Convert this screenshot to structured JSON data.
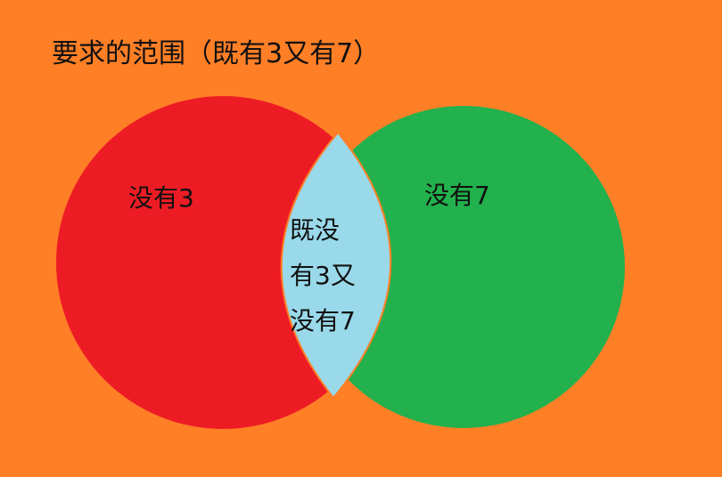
{
  "title": "要求的范围（既有3又有7）",
  "regions": {
    "left": {
      "label": "没有3",
      "color": "#ed1c24"
    },
    "right": {
      "label": "没有7",
      "color": "#22b14c"
    },
    "intersection": {
      "lines": [
        "既没",
        "有3又",
        "没有7"
      ],
      "color": "#99d9ea"
    }
  },
  "background_color": "#ff7f27"
}
